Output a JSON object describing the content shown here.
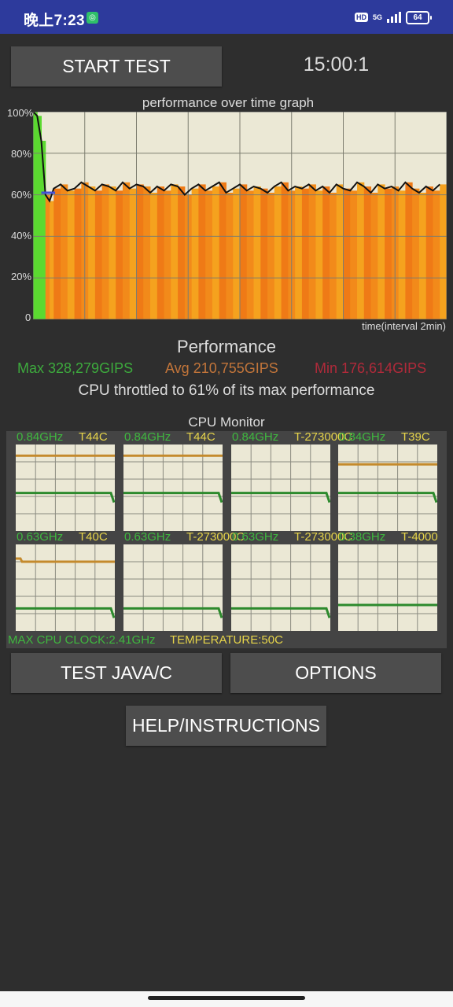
{
  "status_bar": {
    "time": "晚上7:23",
    "app_icon": "notification-app-icon",
    "hd": "HD",
    "network": "5G",
    "battery": "64",
    "colors": {
      "background": "#2d3a9c"
    }
  },
  "controls": {
    "start_label": "START TEST",
    "timer": "15:00:1"
  },
  "graph": {
    "title": "performance over time graph",
    "y_ticks": [
      "100%",
      "80%",
      "60%",
      "40%",
      "20%",
      "0"
    ],
    "x_label": "time(interval 2min)"
  },
  "chart_data": {
    "type": "line",
    "title": "performance over time graph",
    "xlabel": "time(interval 2min)",
    "ylabel": "",
    "ylim": [
      0,
      100
    ],
    "x_units": "minutes",
    "xlim": [
      0,
      30
    ],
    "grid": true,
    "series": [
      {
        "x": [
          0,
          0.3,
          0.6,
          0.9,
          1.2,
          1.5,
          2,
          2.5,
          3,
          3.5,
          4,
          4.5,
          5,
          5.5,
          6,
          6.5,
          7,
          7.5,
          8,
          8.5,
          9,
          9.5,
          10,
          10.5,
          11,
          11.5,
          12,
          12.5,
          13,
          13.5,
          14,
          14.5,
          15,
          15.5,
          16,
          16.5,
          17,
          17.5,
          18,
          18.5,
          19,
          19.5,
          20,
          20.5,
          21,
          21.5,
          22,
          22.5,
          23,
          23.5,
          24,
          24.5,
          25,
          25.5,
          26,
          26.5,
          27,
          27.5,
          28,
          28.5,
          29,
          29.5
        ],
        "values": [
          100,
          98,
          86,
          60,
          57,
          63,
          65,
          62,
          63,
          66,
          64,
          62,
          65,
          64,
          62,
          66,
          63,
          65,
          64,
          61,
          64,
          62,
          65,
          64,
          60,
          63,
          65,
          62,
          64,
          66,
          61,
          63,
          65,
          62,
          64,
          63,
          61,
          64,
          66,
          62,
          64,
          63,
          65,
          62,
          64,
          61,
          65,
          63,
          62,
          66,
          64,
          61,
          65,
          63,
          64,
          62,
          66,
          63,
          61,
          64,
          62,
          65
        ]
      }
    ]
  },
  "performance": {
    "heading": "Performance",
    "max": "Max 328,279GIPS",
    "avg": "Avg 210,755GIPS",
    "min": "Min 176,614GIPS",
    "throttle": "CPU throttled to 61% of its max performance"
  },
  "cpu_monitor": {
    "title": "CPU Monitor",
    "cores": [
      {
        "freq": "0.84GHz",
        "temp": "T44C",
        "temp_level": 0.87,
        "freq_level": 0.44
      },
      {
        "freq": "0.84GHz",
        "temp": "T44C",
        "temp_level": 0.87,
        "freq_level": 0.44
      },
      {
        "freq": "0.84GHz",
        "temp": "T-273000C",
        "temp_level": null,
        "freq_level": 0.44
      },
      {
        "freq": "0.84GHz",
        "temp": "T39C",
        "temp_level": 0.77,
        "freq_level": 0.44
      },
      {
        "freq": "0.63GHz",
        "temp": "T40C",
        "temp_level": 0.8,
        "freq_level": 0.26
      },
      {
        "freq": "0.63GHz",
        "temp": "T-273000C",
        "temp_level": null,
        "freq_level": 0.26
      },
      {
        "freq": "0.63GHz",
        "temp": "T-273000C",
        "temp_level": null,
        "freq_level": 0.26
      },
      {
        "freq": "0.38GHz",
        "temp": "T-4000",
        "temp_level": null,
        "freq_level": 0.3
      }
    ],
    "max_clock": "MAX CPU CLOCK:2.41GHz",
    "temperature": "TEMPERATURE:50C"
  },
  "buttons": {
    "java_label": "TEST JAVA/C",
    "options_label": "OPTIONS",
    "help_label": "HELP/INSTRUCTIONS"
  }
}
